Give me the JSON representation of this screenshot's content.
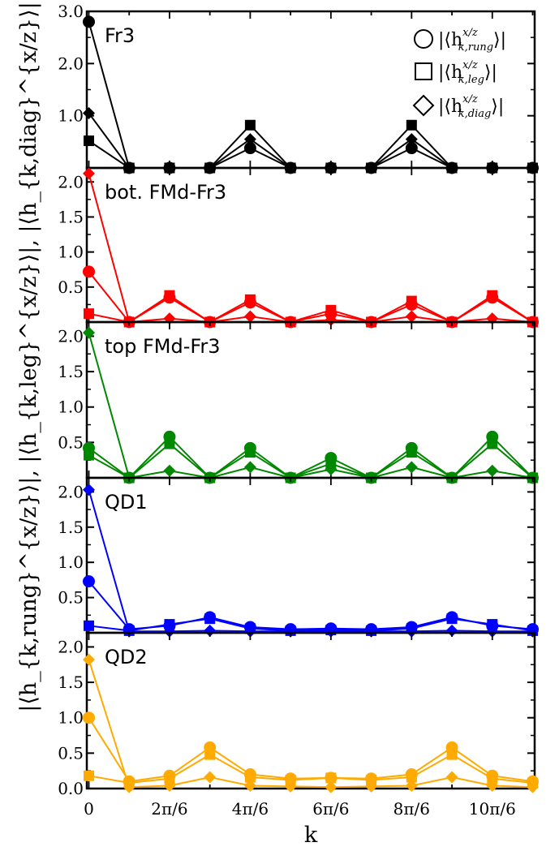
{
  "chart_data": {
    "type": "line",
    "xlabel": "k",
    "ylabel": "|⟨h_{k,rung}^{x/z}⟩|,  |⟨h_{k,leg}^{x/z}⟩|,  |⟨h_{k,diag}^{x/z}⟩|",
    "x": [
      0,
      1,
      2,
      3,
      4,
      5,
      6,
      7,
      8,
      9,
      10,
      11
    ],
    "x_tick_positions": [
      0,
      2,
      4,
      6,
      8,
      10
    ],
    "x_tick_labels": [
      "0",
      "2π/6",
      "4π/6",
      "6π/6",
      "8π/6",
      "10π/6"
    ],
    "grid": false,
    "legend": {
      "placement": "top-right",
      "entries": [
        {
          "marker": "circle",
          "label_main": "|⟨h",
          "label_sub": "k,rung",
          "label_sup": "x/z",
          "label_end": "⟩|"
        },
        {
          "marker": "square",
          "label_main": "|⟨h",
          "label_sub": "k,leg",
          "label_sup": "x/z",
          "label_end": "⟩|"
        },
        {
          "marker": "diamond",
          "label_main": "|⟨h",
          "label_sub": "k,diag",
          "label_sup": "x/z",
          "label_end": "⟩|"
        }
      ]
    },
    "panels": [
      {
        "label": "Fr3",
        "color": "#000000",
        "ylim": [
          0,
          3.0
        ],
        "yticks": [
          1.0,
          2.0,
          3.0
        ],
        "ytick_labels": [
          "1.0",
          "2.0",
          "3.0"
        ],
        "series": [
          {
            "marker": "circle",
            "values": [
              2.8,
              0.0,
              0.0,
              0.0,
              0.38,
              0.0,
              0.0,
              0.0,
              0.38,
              0.0,
              0.0,
              0.0
            ]
          },
          {
            "marker": "square",
            "values": [
              0.52,
              0.0,
              0.0,
              0.0,
              0.82,
              0.0,
              0.0,
              0.0,
              0.82,
              0.0,
              0.0,
              0.0
            ]
          },
          {
            "marker": "diamond",
            "values": [
              1.05,
              0.0,
              0.0,
              0.0,
              0.55,
              0.0,
              0.0,
              0.0,
              0.55,
              0.0,
              0.0,
              0.0
            ]
          }
        ]
      },
      {
        "label": "bot. FMd-Fr3",
        "color": "#ff0000",
        "ylim": [
          0,
          2.2
        ],
        "yticks": [
          0.5,
          1.0,
          1.5,
          2.0
        ],
        "ytick_labels": [
          "0.5",
          "1.0",
          "1.5",
          "2.0"
        ],
        "series": [
          {
            "marker": "circle",
            "values": [
              0.72,
              0.0,
              0.35,
              0.0,
              0.28,
              0.0,
              0.12,
              0.0,
              0.25,
              0.0,
              0.35,
              0.0
            ]
          },
          {
            "marker": "square",
            "values": [
              0.12,
              0.0,
              0.38,
              0.0,
              0.32,
              0.0,
              0.17,
              0.0,
              0.3,
              0.0,
              0.38,
              0.0
            ]
          },
          {
            "marker": "diamond",
            "values": [
              2.12,
              0.0,
              0.05,
              0.0,
              0.08,
              0.0,
              0.03,
              0.0,
              0.08,
              0.0,
              0.05,
              0.0
            ]
          }
        ]
      },
      {
        "label": "top FMd-Fr3",
        "color": "#008800",
        "ylim": [
          0,
          2.2
        ],
        "yticks": [
          0.5,
          1.0,
          1.5,
          2.0
        ],
        "ytick_labels": [
          "0.5",
          "1.0",
          "1.5",
          "2.0"
        ],
        "series": [
          {
            "marker": "circle",
            "values": [
              0.42,
              0.0,
              0.58,
              0.0,
              0.42,
              0.0,
              0.28,
              0.0,
              0.42,
              0.0,
              0.58,
              0.0
            ]
          },
          {
            "marker": "square",
            "values": [
              0.32,
              0.0,
              0.48,
              0.0,
              0.36,
              0.0,
              0.2,
              0.0,
              0.36,
              0.0,
              0.48,
              0.0
            ]
          },
          {
            "marker": "diamond",
            "values": [
              2.05,
              0.0,
              0.1,
              0.0,
              0.15,
              0.0,
              0.12,
              0.0,
              0.15,
              0.0,
              0.1,
              0.0
            ]
          }
        ]
      },
      {
        "label": "QD1",
        "color": "#0000ff",
        "ylim": [
          0,
          2.2
        ],
        "yticks": [
          0.5,
          1.0,
          1.5,
          2.0
        ],
        "ytick_labels": [
          "0.5",
          "1.0",
          "1.5",
          "2.0"
        ],
        "series": [
          {
            "marker": "circle",
            "values": [
              0.73,
              0.05,
              0.1,
              0.22,
              0.08,
              0.05,
              0.06,
              0.05,
              0.08,
              0.22,
              0.1,
              0.05
            ]
          },
          {
            "marker": "square",
            "values": [
              0.1,
              0.03,
              0.12,
              0.2,
              0.06,
              0.03,
              0.04,
              0.03,
              0.06,
              0.2,
              0.12,
              0.03
            ]
          },
          {
            "marker": "diamond",
            "values": [
              2.03,
              0.02,
              0.02,
              0.03,
              0.02,
              0.02,
              0.02,
              0.02,
              0.02,
              0.03,
              0.02,
              0.02
            ]
          }
        ]
      },
      {
        "label": "QD2",
        "color": "#ffaa00",
        "ylim": [
          0,
          2.2
        ],
        "yticks": [
          0.0,
          0.5,
          1.0,
          1.5,
          2.0
        ],
        "ytick_labels": [
          "0.0",
          "0.5",
          "1.0",
          "1.5",
          "2.0"
        ],
        "series": [
          {
            "marker": "circle",
            "values": [
              1.0,
              0.1,
              0.18,
              0.58,
              0.2,
              0.14,
              0.15,
              0.14,
              0.2,
              0.58,
              0.18,
              0.1
            ]
          },
          {
            "marker": "square",
            "values": [
              0.18,
              0.08,
              0.14,
              0.48,
              0.16,
              0.12,
              0.15,
              0.12,
              0.16,
              0.48,
              0.14,
              0.08
            ]
          },
          {
            "marker": "diamond",
            "values": [
              1.82,
              0.02,
              0.04,
              0.16,
              0.04,
              0.03,
              0.02,
              0.03,
              0.04,
              0.16,
              0.04,
              0.02
            ]
          }
        ]
      }
    ]
  }
}
